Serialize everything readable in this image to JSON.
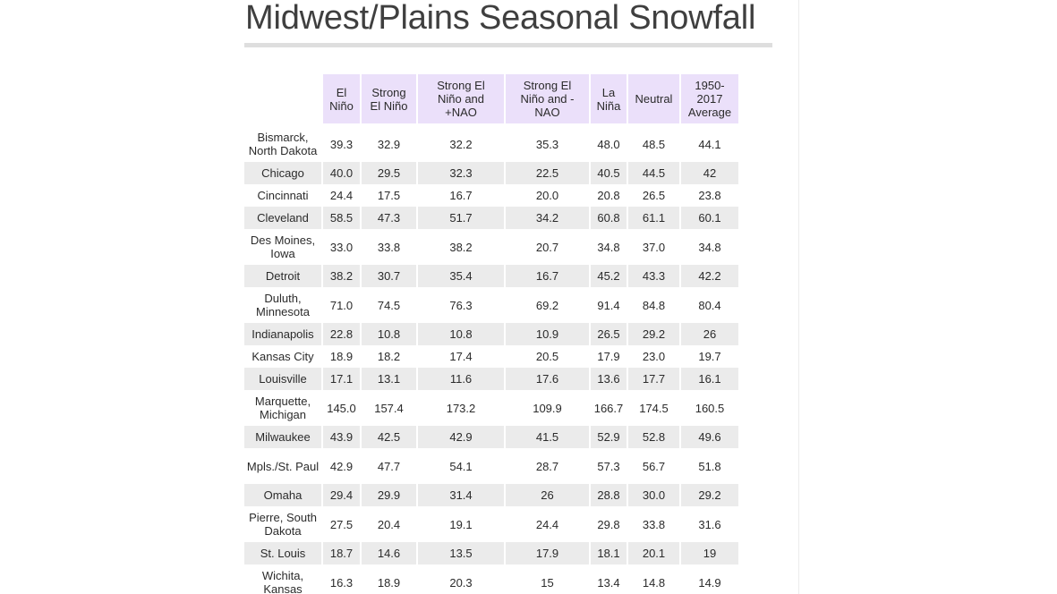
{
  "title": "Midwest/Plains Seasonal Snowfall",
  "table": {
    "columns": [
      "",
      "El\nNiño",
      "Strong\nEl Niño",
      "Strong El\nNiño and\n+NAO",
      "Strong El\nNiño and -\nNAO",
      "La\nNiña",
      "Neutral",
      "1950-\n2017\nAverage"
    ],
    "rows": [
      {
        "city": "Bismarck, North Dakota",
        "values": [
          "39.3",
          "32.9",
          "32.2",
          "35.3",
          "48.0",
          "48.5",
          "44.1"
        ]
      },
      {
        "city": "Chicago",
        "values": [
          "40.0",
          "29.5",
          "32.3",
          "22.5",
          "40.5",
          "44.5",
          "42"
        ]
      },
      {
        "city": "Cincinnati",
        "values": [
          "24.4",
          "17.5",
          "16.7",
          "20.0",
          "20.8",
          "26.5",
          "23.8"
        ]
      },
      {
        "city": "Cleveland",
        "values": [
          "58.5",
          "47.3",
          "51.7",
          "34.2",
          "60.8",
          "61.1",
          "60.1"
        ]
      },
      {
        "city": "Des Moines, Iowa",
        "values": [
          "33.0",
          "33.8",
          "38.2",
          "20.7",
          "34.8",
          "37.0",
          "34.8"
        ]
      },
      {
        "city": "Detroit",
        "values": [
          "38.2",
          "30.7",
          "35.4",
          "16.7",
          "45.2",
          "43.3",
          "42.2"
        ]
      },
      {
        "city": "Duluth, Minnesota",
        "values": [
          "71.0",
          "74.5",
          "76.3",
          "69.2",
          "91.4",
          "84.8",
          "80.4"
        ]
      },
      {
        "city": "Indianapolis",
        "values": [
          "22.8",
          "10.8",
          "10.8",
          "10.9",
          "26.5",
          "29.2",
          "26"
        ]
      },
      {
        "city": "Kansas City",
        "values": [
          "18.9",
          "18.2",
          "17.4",
          "20.5",
          "17.9",
          "23.0",
          "19.7"
        ]
      },
      {
        "city": "Louisville",
        "values": [
          "17.1",
          "13.1",
          "11.6",
          "17.6",
          "13.6",
          "17.7",
          "16.1"
        ]
      },
      {
        "city": "Marquette, Michigan",
        "values": [
          "145.0",
          "157.4",
          "173.2",
          "109.9",
          "166.7",
          "174.5",
          "160.5"
        ]
      },
      {
        "city": "Milwaukee",
        "values": [
          "43.9",
          "42.5",
          "42.9",
          "41.5",
          "52.9",
          "52.8",
          "49.6"
        ]
      },
      {
        "city": "Mpls./St. Paul",
        "values": [
          "42.9",
          "47.7",
          "54.1",
          "28.7",
          "57.3",
          "56.7",
          "51.8"
        ]
      },
      {
        "city": "Omaha",
        "values": [
          "29.4",
          "29.9",
          "31.4",
          "26",
          "28.8",
          "30.0",
          "29.2"
        ]
      },
      {
        "city": "Pierre, South Dakota",
        "values": [
          "27.5",
          "20.4",
          "19.1",
          "24.4",
          "29.8",
          "33.8",
          "31.6"
        ]
      },
      {
        "city": "St. Louis",
        "values": [
          "18.7",
          "14.6",
          "13.5",
          "17.9",
          "18.1",
          "20.1",
          "19"
        ]
      },
      {
        "city": "Wichita, Kansas",
        "values": [
          "16.3",
          "18.9",
          "20.3",
          "15",
          "13.4",
          "14.8",
          "14.9"
        ]
      }
    ]
  }
}
